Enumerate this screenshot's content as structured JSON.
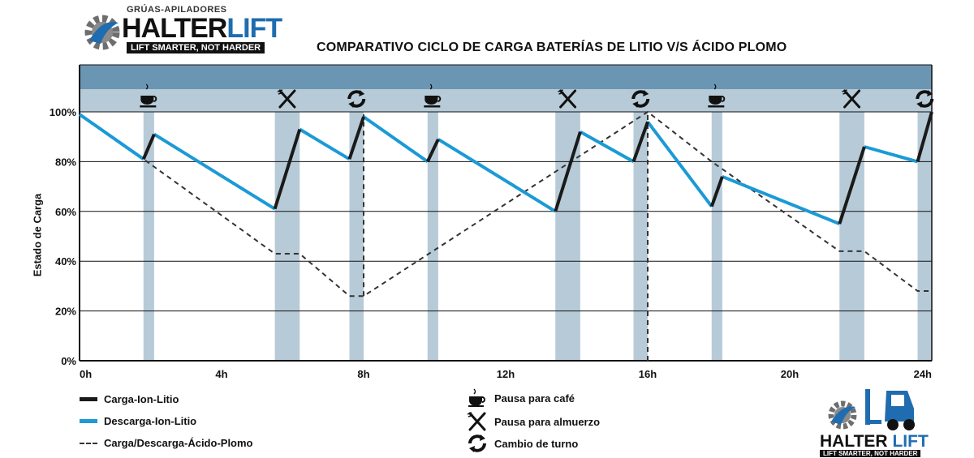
{
  "brand": {
    "tagline": "GRÚAS-APILADORES",
    "name_part1": "HALTER",
    "name_part2": "LIFT",
    "slogan": "LIFT SMARTER, NOT HARDER",
    "bottom_name_part1": "HALTER",
    "bottom_name_part2": "LIFT",
    "bottom_slogan": "LIFT SMARTER, NOT HARDER"
  },
  "colors": {
    "charge": "#1a1a1a",
    "discharge": "#1b9ad6",
    "lead_acid": "#333333",
    "pause_band": "#b7cad7",
    "top_band": "#6b96b3",
    "brand_blue": "#1f6cb0"
  },
  "chart_data": {
    "type": "line",
    "title": "COMPARATIVO CICLO DE CARGA  BATERÍAS DE LITIO V/S ÁCIDO PLOMO",
    "xlabel": "",
    "ylabel": "Estado de Carga",
    "xlim": [
      0,
      24
    ],
    "ylim": [
      0,
      100
    ],
    "x_ticks": [
      0,
      4,
      8,
      12,
      16,
      20,
      24
    ],
    "x_tick_labels": [
      "0h",
      "4h",
      "8h",
      "12h",
      "16h",
      "20h",
      "24h"
    ],
    "y_ticks": [
      0,
      20,
      40,
      60,
      80,
      100
    ],
    "y_tick_labels": [
      "0%",
      "20%",
      "40%",
      "60%",
      "80%",
      "100%"
    ],
    "grid": "horizontal",
    "pause_bands": [
      {
        "type": "coffee",
        "start": 1.8,
        "end": 2.1
      },
      {
        "type": "lunch",
        "start": 5.5,
        "end": 6.2
      },
      {
        "type": "shift",
        "start": 7.6,
        "end": 8.0
      },
      {
        "type": "coffee",
        "start": 9.8,
        "end": 10.1
      },
      {
        "type": "lunch",
        "start": 13.4,
        "end": 14.1
      },
      {
        "type": "shift",
        "start": 15.6,
        "end": 16.0
      },
      {
        "type": "coffee",
        "start": 17.8,
        "end": 18.1
      },
      {
        "type": "lunch",
        "start": 21.4,
        "end": 22.1
      },
      {
        "type": "shift",
        "start": 23.6,
        "end": 24.0
      }
    ],
    "series": [
      {
        "name": "Carga-Ion-Litio",
        "style": "solid",
        "segments": [
          [
            [
              1.8,
              81
            ],
            [
              2.1,
              91
            ]
          ],
          [
            [
              5.5,
              61
            ],
            [
              6.2,
              93
            ]
          ],
          [
            [
              7.6,
              81
            ],
            [
              8.0,
              98
            ]
          ],
          [
            [
              9.8,
              80
            ],
            [
              10.1,
              89
            ]
          ],
          [
            [
              13.4,
              60
            ],
            [
              14.1,
              92
            ]
          ],
          [
            [
              15.6,
              80
            ],
            [
              16.0,
              96
            ]
          ],
          [
            [
              17.8,
              62
            ],
            [
              18.1,
              74
            ]
          ],
          [
            [
              21.4,
              55
            ],
            [
              22.1,
              86
            ]
          ],
          [
            [
              23.6,
              80
            ],
            [
              24.0,
              100
            ]
          ]
        ]
      },
      {
        "name": "Descarga-Ion-Litio",
        "style": "solid",
        "segments": [
          [
            [
              0,
              99
            ],
            [
              1.8,
              81
            ]
          ],
          [
            [
              2.1,
              91
            ],
            [
              5.5,
              61
            ]
          ],
          [
            [
              6.2,
              93
            ],
            [
              7.6,
              81
            ]
          ],
          [
            [
              8.0,
              98
            ],
            [
              9.8,
              80
            ]
          ],
          [
            [
              10.1,
              89
            ],
            [
              13.4,
              60
            ]
          ],
          [
            [
              14.1,
              92
            ],
            [
              15.6,
              80
            ]
          ],
          [
            [
              16.0,
              96
            ],
            [
              17.8,
              62
            ]
          ],
          [
            [
              18.1,
              74
            ],
            [
              21.4,
              55
            ]
          ],
          [
            [
              22.1,
              86
            ],
            [
              23.6,
              80
            ]
          ]
        ]
      },
      {
        "name": "Carga/Descarga-Ácido-Plomo",
        "style": "dashed",
        "segments": [
          [
            [
              0,
              99
            ],
            [
              1.8,
              81
            ],
            [
              5.5,
              43
            ],
            [
              6.2,
              43
            ],
            [
              7.6,
              26
            ],
            [
              8.0,
              26
            ],
            [
              16.0,
              100
            ],
            [
              17.8,
              80
            ],
            [
              21.4,
              44
            ],
            [
              22.1,
              44
            ],
            [
              23.6,
              28
            ],
            [
              24.0,
              28
            ]
          ],
          [
            [
              8.0,
              26
            ],
            [
              8.0,
              99
            ]
          ],
          [
            [
              16.0,
              0
            ],
            [
              16.0,
              100
            ]
          ]
        ]
      }
    ],
    "legend": {
      "placement": "bottom",
      "entries": [
        {
          "label": "Carga-Ion-Litio",
          "kind": "charge"
        },
        {
          "label": "Descarga-Ion-Litio",
          "kind": "discharge"
        },
        {
          "label": "Carga/Descarga-Ácido-Plomo",
          "kind": "lead"
        },
        {
          "label": "Pausa para café",
          "kind": "coffee"
        },
        {
          "label": "Pausa para almuerzo",
          "kind": "lunch"
        },
        {
          "label": "Cambio de turno",
          "kind": "shift"
        }
      ]
    }
  }
}
